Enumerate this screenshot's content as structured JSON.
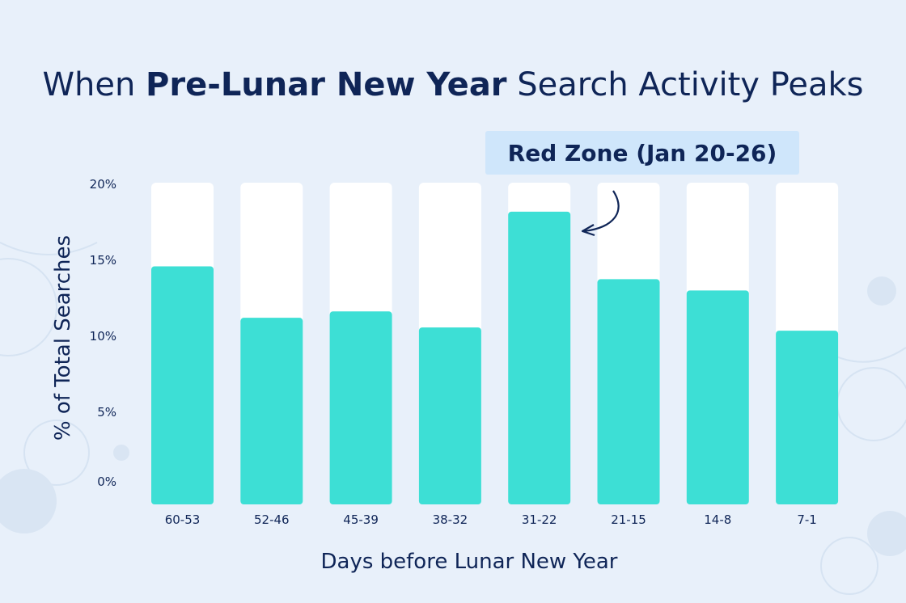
{
  "title": {
    "pre": "When ",
    "bold": "Pre-Lunar New Year",
    "post": " Search Activity Peaks"
  },
  "annotation": {
    "label": "Red Zone (Jan 20-26)",
    "target_category": "31-22"
  },
  "colors": {
    "bar": "#3ddfd5",
    "bar_track": "#ffffff",
    "text": "#0f2557",
    "background": "#e8f0fa",
    "callout": "#cfe6fb"
  },
  "chart_data": {
    "type": "bar",
    "title": "When Pre-Lunar New Year Search Activity Peaks",
    "xlabel": "Days before Lunar New Year",
    "ylabel": "% of Total Searches",
    "categories": [
      "60-53",
      "52-46",
      "45-39",
      "38-32",
      "31-22",
      "21-15",
      "14-8",
      "7-1"
    ],
    "values": [
      14.8,
      11.6,
      12.0,
      11.0,
      18.2,
      14.0,
      13.3,
      10.8
    ],
    "ylim": [
      0,
      20
    ],
    "yticks": [
      "0%",
      "5%",
      "10%",
      "15%",
      "20%"
    ],
    "grid": false,
    "legend": "none"
  }
}
